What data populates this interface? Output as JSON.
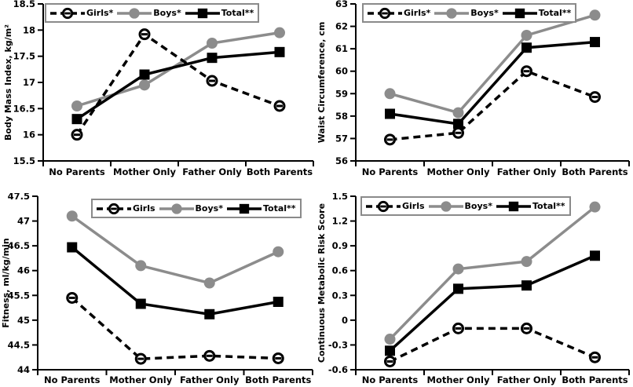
{
  "figure_title": "",
  "colors": {
    "black": "#000000",
    "gray": "#8c8c8c",
    "background": "#ffffff",
    "legend_border": "#8a8a8a"
  },
  "categories": [
    "No Parents",
    "Mother Only",
    "Father Only",
    "Both Parents"
  ],
  "chart_data": [
    {
      "type": "line",
      "name": "bmi",
      "title": "",
      "ylabel": "Body Mass Index, kg/m²",
      "ylim": [
        15.5,
        18.5
      ],
      "ytick_step": 0.5,
      "grid": false,
      "legend_position": "top-left-inside",
      "categories": [
        "No Parents",
        "Mother Only",
        "Father Only",
        "Both Parents"
      ],
      "series": [
        {
          "name": "Girls*",
          "line_style": "dashed",
          "color": "#000000",
          "marker": "open-circle",
          "values": [
            16.0,
            17.92,
            17.03,
            16.55
          ]
        },
        {
          "name": "Boys*",
          "line_style": "solid",
          "color": "#8c8c8c",
          "marker": "filled-circle",
          "values": [
            16.55,
            16.95,
            17.75,
            17.95
          ]
        },
        {
          "name": "Total**",
          "line_style": "solid",
          "color": "#000000",
          "marker": "filled-square",
          "values": [
            16.3,
            17.15,
            17.47,
            17.58
          ]
        }
      ]
    },
    {
      "type": "line",
      "name": "waist",
      "title": "",
      "ylabel": "Waist Circumference, cm",
      "ylim": [
        56,
        63
      ],
      "ytick_step": 1,
      "grid": false,
      "legend_position": "top-left-inside",
      "categories": [
        "No Parents",
        "Mother Only",
        "Father Only",
        "Both Parents"
      ],
      "series": [
        {
          "name": "Girls*",
          "line_style": "dashed",
          "color": "#000000",
          "marker": "open-circle",
          "values": [
            56.95,
            57.25,
            60.0,
            58.85
          ]
        },
        {
          "name": "Boys*",
          "line_style": "solid",
          "color": "#8c8c8c",
          "marker": "filled-circle",
          "values": [
            59.0,
            58.15,
            61.6,
            62.5
          ]
        },
        {
          "name": "Total**",
          "line_style": "solid",
          "color": "#000000",
          "marker": "filled-square",
          "values": [
            58.1,
            57.65,
            61.05,
            61.3
          ]
        }
      ]
    },
    {
      "type": "line",
      "name": "fitness",
      "title": "",
      "ylabel": "Fitness, ml/kg/min",
      "ylim": [
        44,
        47.5
      ],
      "ytick_step": 0.5,
      "grid": false,
      "legend_position": "top-center-inside",
      "categories": [
        "No Parents",
        "Mother Only",
        "Father Only",
        "Both Parents"
      ],
      "series": [
        {
          "name": "Girls",
          "line_style": "dashed",
          "color": "#000000",
          "marker": "open-circle",
          "values": [
            45.45,
            44.22,
            44.28,
            44.23
          ]
        },
        {
          "name": "Boys*",
          "line_style": "solid",
          "color": "#8c8c8c",
          "marker": "filled-circle",
          "values": [
            47.1,
            46.1,
            45.75,
            46.38
          ]
        },
        {
          "name": "Total**",
          "line_style": "solid",
          "color": "#000000",
          "marker": "filled-square",
          "values": [
            46.47,
            45.33,
            45.12,
            45.37
          ]
        }
      ]
    },
    {
      "type": "line",
      "name": "cmr",
      "title": "",
      "ylabel": "Continuous Metabolic Risk Score",
      "ylim": [
        -0.6,
        1.5
      ],
      "ytick_step": 0.3,
      "grid": false,
      "legend_position": "top-left-inside",
      "categories": [
        "No Parents",
        "Mother Only",
        "Father Only",
        "Both Parents"
      ],
      "series": [
        {
          "name": "Girls",
          "line_style": "dashed",
          "color": "#000000",
          "marker": "open-circle",
          "values": [
            -0.5,
            -0.1,
            -0.1,
            -0.45
          ]
        },
        {
          "name": "Boys*",
          "line_style": "solid",
          "color": "#8c8c8c",
          "marker": "filled-circle",
          "values": [
            -0.23,
            0.62,
            0.71,
            1.37
          ]
        },
        {
          "name": "Total**",
          "line_style": "solid",
          "color": "#000000",
          "marker": "filled-square",
          "values": [
            -0.37,
            0.38,
            0.42,
            0.78
          ]
        }
      ]
    }
  ]
}
